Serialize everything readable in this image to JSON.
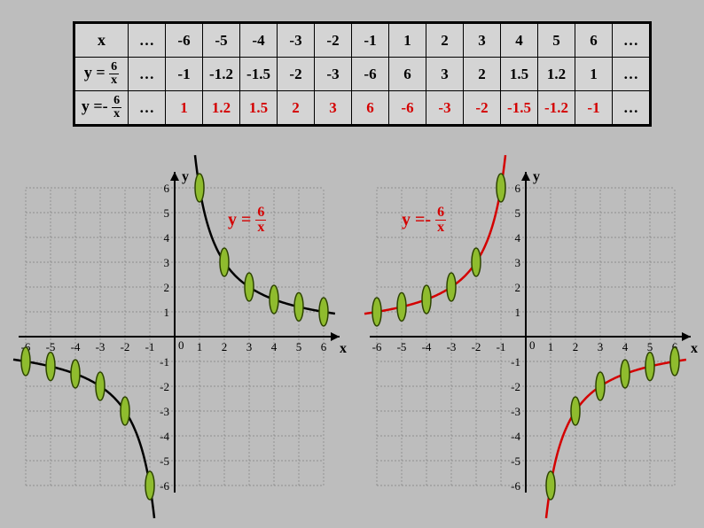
{
  "background_color": "#bdbdbd",
  "table": {
    "bg": "#d4d4d4",
    "border_color": "#000000",
    "columns": [
      "x",
      "…",
      "-6",
      "-5",
      "-4",
      "-3",
      "-2",
      "-1",
      "1",
      "2",
      "3",
      "4",
      "5",
      "6",
      "…"
    ],
    "row2_header": "y = 6/x",
    "row2": [
      "…",
      "-1",
      "-1.2",
      "-1.5",
      "-2",
      "-3",
      "-6",
      "6",
      "3",
      "2",
      "1.5",
      "1.2",
      "1",
      "…"
    ],
    "row3_header": "y = -6/x",
    "row3": [
      "…",
      "1",
      "1.2",
      "1.5",
      "2",
      "3",
      "6",
      "-6",
      "-3",
      "-2",
      "-1.5",
      "-1.2",
      "-1",
      "…"
    ],
    "row3_color": "#d40000"
  },
  "chart_common": {
    "xlim": [
      -6,
      6
    ],
    "ylim": [
      -6,
      6
    ],
    "xtick_step": 1,
    "ytick_step": 1,
    "grid_color": "#808080",
    "grid_dash": "2,2",
    "axis_color": "#000000",
    "axis_width": 2,
    "tick_font_size": 13,
    "marker_fill": "#8fbc2e",
    "marker_stroke": "#2d4400",
    "marker_rx": 5,
    "marker_ry": 16,
    "label_color": "#d40000"
  },
  "chart1": {
    "type": "scatter+curve",
    "curve_color": "#000000",
    "curve_width": 2.5,
    "label": "y = 6/x",
    "points": [
      {
        "x": -6,
        "y": -1
      },
      {
        "x": -5,
        "y": -1.2
      },
      {
        "x": -4,
        "y": -1.5
      },
      {
        "x": -3,
        "y": -2
      },
      {
        "x": -2,
        "y": -3
      },
      {
        "x": -1,
        "y": -6
      },
      {
        "x": 1,
        "y": 6
      },
      {
        "x": 2,
        "y": 3
      },
      {
        "x": 3,
        "y": 2
      },
      {
        "x": 4,
        "y": 1.5
      },
      {
        "x": 5,
        "y": 1.2
      },
      {
        "x": 6,
        "y": 1
      }
    ]
  },
  "chart2": {
    "type": "scatter+curve",
    "curve_color": "#d40000",
    "curve_width": 2.5,
    "label": "y = -6/x",
    "points": [
      {
        "x": -6,
        "y": 1
      },
      {
        "x": -5,
        "y": 1.2
      },
      {
        "x": -4,
        "y": 1.5
      },
      {
        "x": -3,
        "y": 2
      },
      {
        "x": -2,
        "y": 3
      },
      {
        "x": -1,
        "y": 6
      },
      {
        "x": 1,
        "y": -6
      },
      {
        "x": 2,
        "y": -3
      },
      {
        "x": 3,
        "y": -2
      },
      {
        "x": 4,
        "y": -1.5
      },
      {
        "x": 5,
        "y": -1.2
      },
      {
        "x": 6,
        "y": -1
      }
    ]
  }
}
